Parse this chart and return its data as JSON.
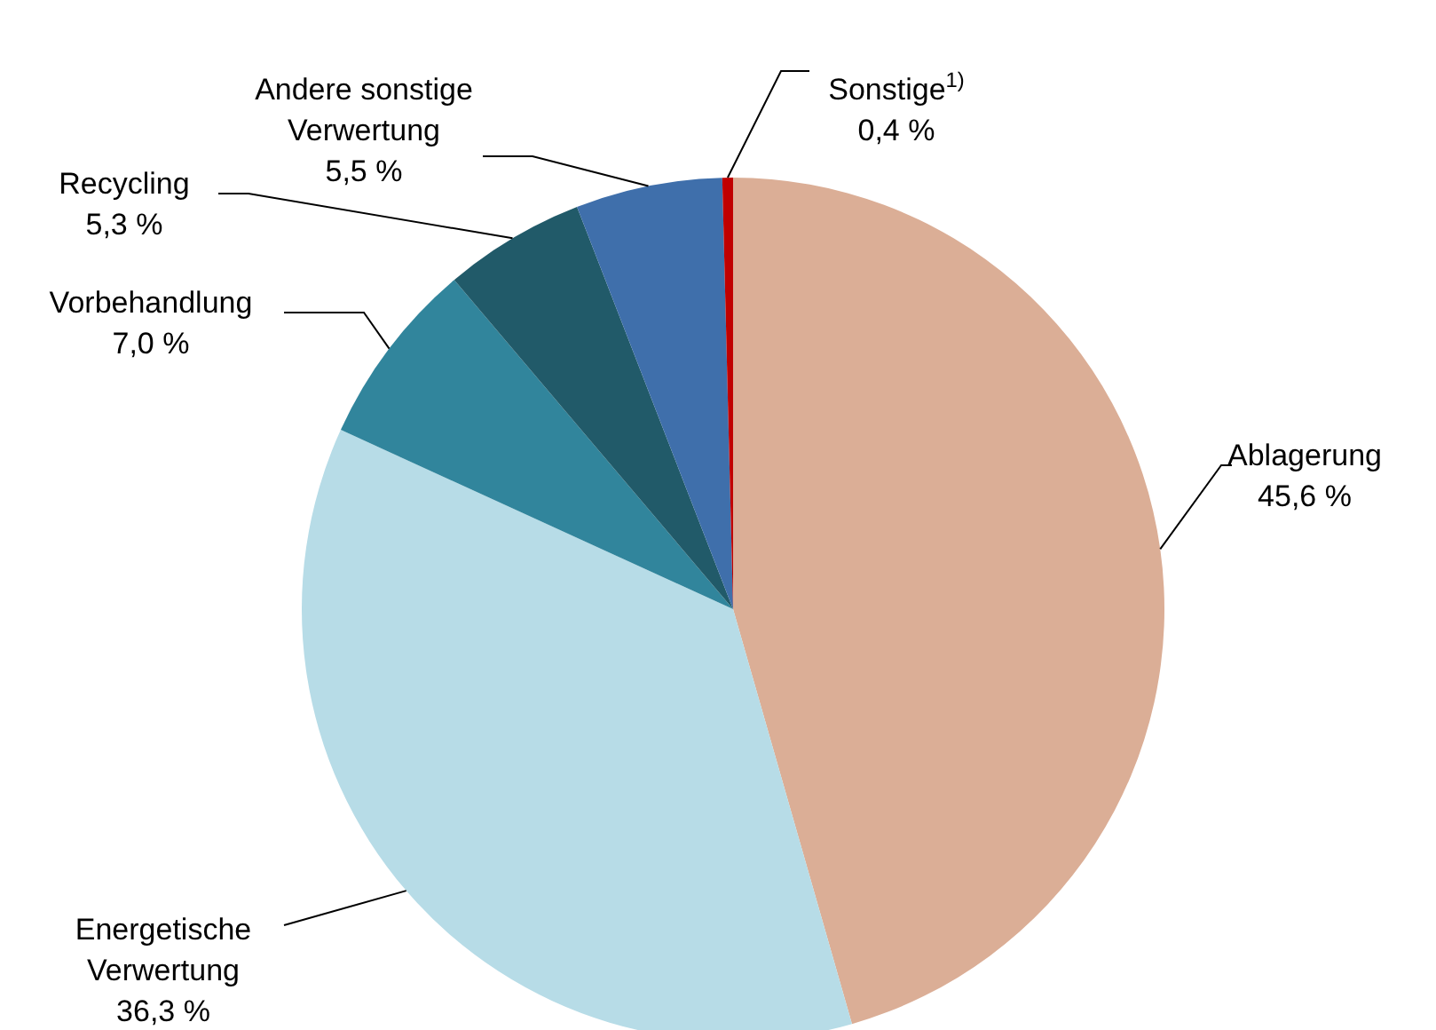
{
  "chart_data": {
    "type": "pie",
    "categories": [
      "Ablagerung",
      "Energetische Verwertung",
      "Vorbehandlung",
      "Recycling",
      "Andere sonstige Verwertung",
      "Sonstige$^{1)}$"
    ],
    "values": [
      45.6,
      36.3,
      7.0,
      5.3,
      5.5,
      0.4
    ],
    "colors": [
      "#dbae96",
      "#b7dce7",
      "#31859c",
      "#215a69",
      "#3f6fab",
      "#c00000"
    ],
    "value_labels": [
      "45,6 %",
      "36,3 %",
      "7,0 %",
      "5,3 %",
      "5,5 %",
      "0,4 %"
    ]
  }
}
